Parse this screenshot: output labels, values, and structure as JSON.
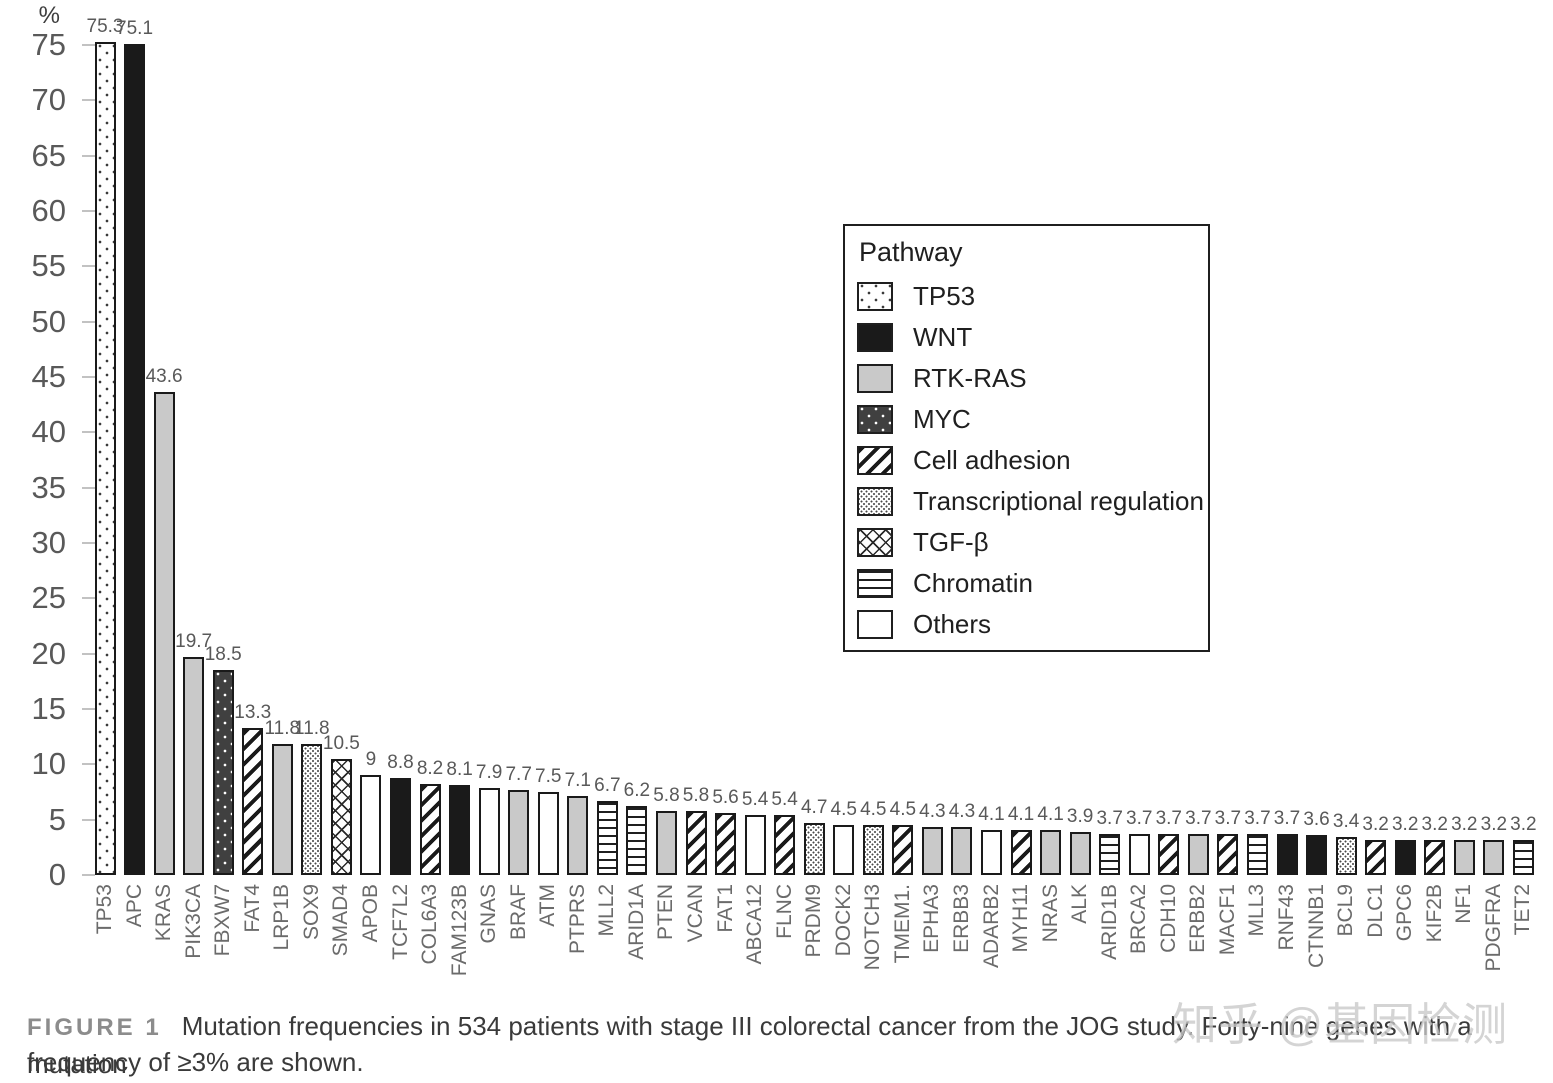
{
  "chart_data": {
    "type": "bar",
    "ylabel": "%",
    "ylim": [
      0,
      75
    ],
    "yticks": [
      0,
      5,
      10,
      15,
      20,
      25,
      30,
      35,
      40,
      45,
      50,
      55,
      60,
      65,
      70,
      75
    ],
    "grid": false,
    "legend": {
      "title": "Pathway",
      "position": "upper right",
      "items": [
        {
          "label": "TP53",
          "pattern": "dots-sparse"
        },
        {
          "label": "WNT",
          "pattern": "solid-black"
        },
        {
          "label": "RTK-RAS",
          "pattern": "solid-gray"
        },
        {
          "label": "MYC",
          "pattern": "dots-dark"
        },
        {
          "label": "Cell adhesion",
          "pattern": "diag"
        },
        {
          "label": "Transcriptional regulation",
          "pattern": "dots-fine"
        },
        {
          "label": "TGF-β",
          "pattern": "cross"
        },
        {
          "label": "Chromatin",
          "pattern": "hlines"
        },
        {
          "label": "Others",
          "pattern": "plain"
        }
      ]
    },
    "bars": [
      {
        "gene": "TP53",
        "value": 75.3,
        "pathway": "TP53"
      },
      {
        "gene": "APC",
        "value": 75.1,
        "pathway": "WNT"
      },
      {
        "gene": "KRAS",
        "value": 43.6,
        "pathway": "RTK-RAS"
      },
      {
        "gene": "PIK3CA",
        "value": 19.7,
        "pathway": "RTK-RAS"
      },
      {
        "gene": "FBXW7",
        "value": 18.5,
        "pathway": "MYC"
      },
      {
        "gene": "FAT4",
        "value": 13.3,
        "pathway": "Cell adhesion"
      },
      {
        "gene": "LRP1B",
        "value": 11.8,
        "pathway": "RTK-RAS"
      },
      {
        "gene": "SOX9",
        "value": 11.8,
        "pathway": "Transcriptional regulation"
      },
      {
        "gene": "SMAD4",
        "value": 10.5,
        "pathway": "TGF-β"
      },
      {
        "gene": "APOB",
        "value": 9,
        "pathway": "Others"
      },
      {
        "gene": "TCF7L2",
        "value": 8.8,
        "pathway": "WNT"
      },
      {
        "gene": "COL6A3",
        "value": 8.2,
        "pathway": "Cell adhesion"
      },
      {
        "gene": "FAM123B",
        "value": 8.1,
        "pathway": "WNT"
      },
      {
        "gene": "GNAS",
        "value": 7.9,
        "pathway": "Others"
      },
      {
        "gene": "BRAF",
        "value": 7.7,
        "pathway": "RTK-RAS"
      },
      {
        "gene": "ATM",
        "value": 7.5,
        "pathway": "Others"
      },
      {
        "gene": "PTPRS",
        "value": 7.1,
        "pathway": "RTK-RAS"
      },
      {
        "gene": "MLL2",
        "value": 6.7,
        "pathway": "Chromatin"
      },
      {
        "gene": "ARID1A",
        "value": 6.2,
        "pathway": "Chromatin"
      },
      {
        "gene": "PTEN",
        "value": 5.8,
        "pathway": "RTK-RAS"
      },
      {
        "gene": "VCAN",
        "value": 5.8,
        "pathway": "Cell adhesion"
      },
      {
        "gene": "FAT1",
        "value": 5.6,
        "pathway": "Cell adhesion"
      },
      {
        "gene": "ABCA12",
        "value": 5.4,
        "pathway": "Others"
      },
      {
        "gene": "FLNC",
        "value": 5.4,
        "pathway": "Cell adhesion"
      },
      {
        "gene": "PRDM9",
        "value": 4.7,
        "pathway": "Transcriptional regulation"
      },
      {
        "gene": "DOCK2",
        "value": 4.5,
        "pathway": "Others"
      },
      {
        "gene": "NOTCH3",
        "value": 4.5,
        "pathway": "Transcriptional regulation"
      },
      {
        "gene": "TMEM1.",
        "value": 4.5,
        "pathway": "Cell adhesion"
      },
      {
        "gene": "EPHA3",
        "value": 4.3,
        "pathway": "RTK-RAS"
      },
      {
        "gene": "ERBB3",
        "value": 4.3,
        "pathway": "RTK-RAS"
      },
      {
        "gene": "ADARB2",
        "value": 4.1,
        "pathway": "Others"
      },
      {
        "gene": "MYH11",
        "value": 4.1,
        "pathway": "Cell adhesion"
      },
      {
        "gene": "NRAS",
        "value": 4.1,
        "pathway": "RTK-RAS"
      },
      {
        "gene": "ALK",
        "value": 3.9,
        "pathway": "RTK-RAS"
      },
      {
        "gene": "ARID1B",
        "value": 3.7,
        "pathway": "Chromatin"
      },
      {
        "gene": "BRCA2",
        "value": 3.7,
        "pathway": "Others"
      },
      {
        "gene": "CDH10",
        "value": 3.7,
        "pathway": "Cell adhesion"
      },
      {
        "gene": "ERBB2",
        "value": 3.7,
        "pathway": "RTK-RAS"
      },
      {
        "gene": "MACF1",
        "value": 3.7,
        "pathway": "Cell adhesion"
      },
      {
        "gene": "MLL3",
        "value": 3.7,
        "pathway": "Chromatin"
      },
      {
        "gene": "RNF43",
        "value": 3.7,
        "pathway": "WNT"
      },
      {
        "gene": "CTNNB1",
        "value": 3.6,
        "pathway": "WNT"
      },
      {
        "gene": "BCL9",
        "value": 3.4,
        "pathway": "Transcriptional regulation"
      },
      {
        "gene": "DLC1",
        "value": 3.2,
        "pathway": "Cell adhesion"
      },
      {
        "gene": "GPC6",
        "value": 3.2,
        "pathway": "WNT"
      },
      {
        "gene": "KIF2B",
        "value": 3.2,
        "pathway": "Cell adhesion"
      },
      {
        "gene": "NF1",
        "value": 3.2,
        "pathway": "RTK-RAS"
      },
      {
        "gene": "PDGFRA",
        "value": 3.2,
        "pathway": "RTK-RAS"
      },
      {
        "gene": "TET2",
        "value": 3.2,
        "pathway": "Chromatin"
      }
    ]
  },
  "caption": {
    "figure_label": "FIGURE 1",
    "line1": "Mutation frequencies in 534 patients with stage III colorectal cancer from the JOG study. Forty-nine genes with a mutation",
    "line2": "frequency of ≥3% are shown."
  },
  "watermark": "知乎 @基因检测",
  "colors": {
    "bar_black": "#1a1a1a",
    "bar_gray": "#c9c9c9",
    "axis_text": "#595959",
    "gene_text": "#6b6b6b",
    "legend_border": "#1f1f1f",
    "caption_label": "#8c8c8c",
    "watermark": "#c8c8c8"
  }
}
